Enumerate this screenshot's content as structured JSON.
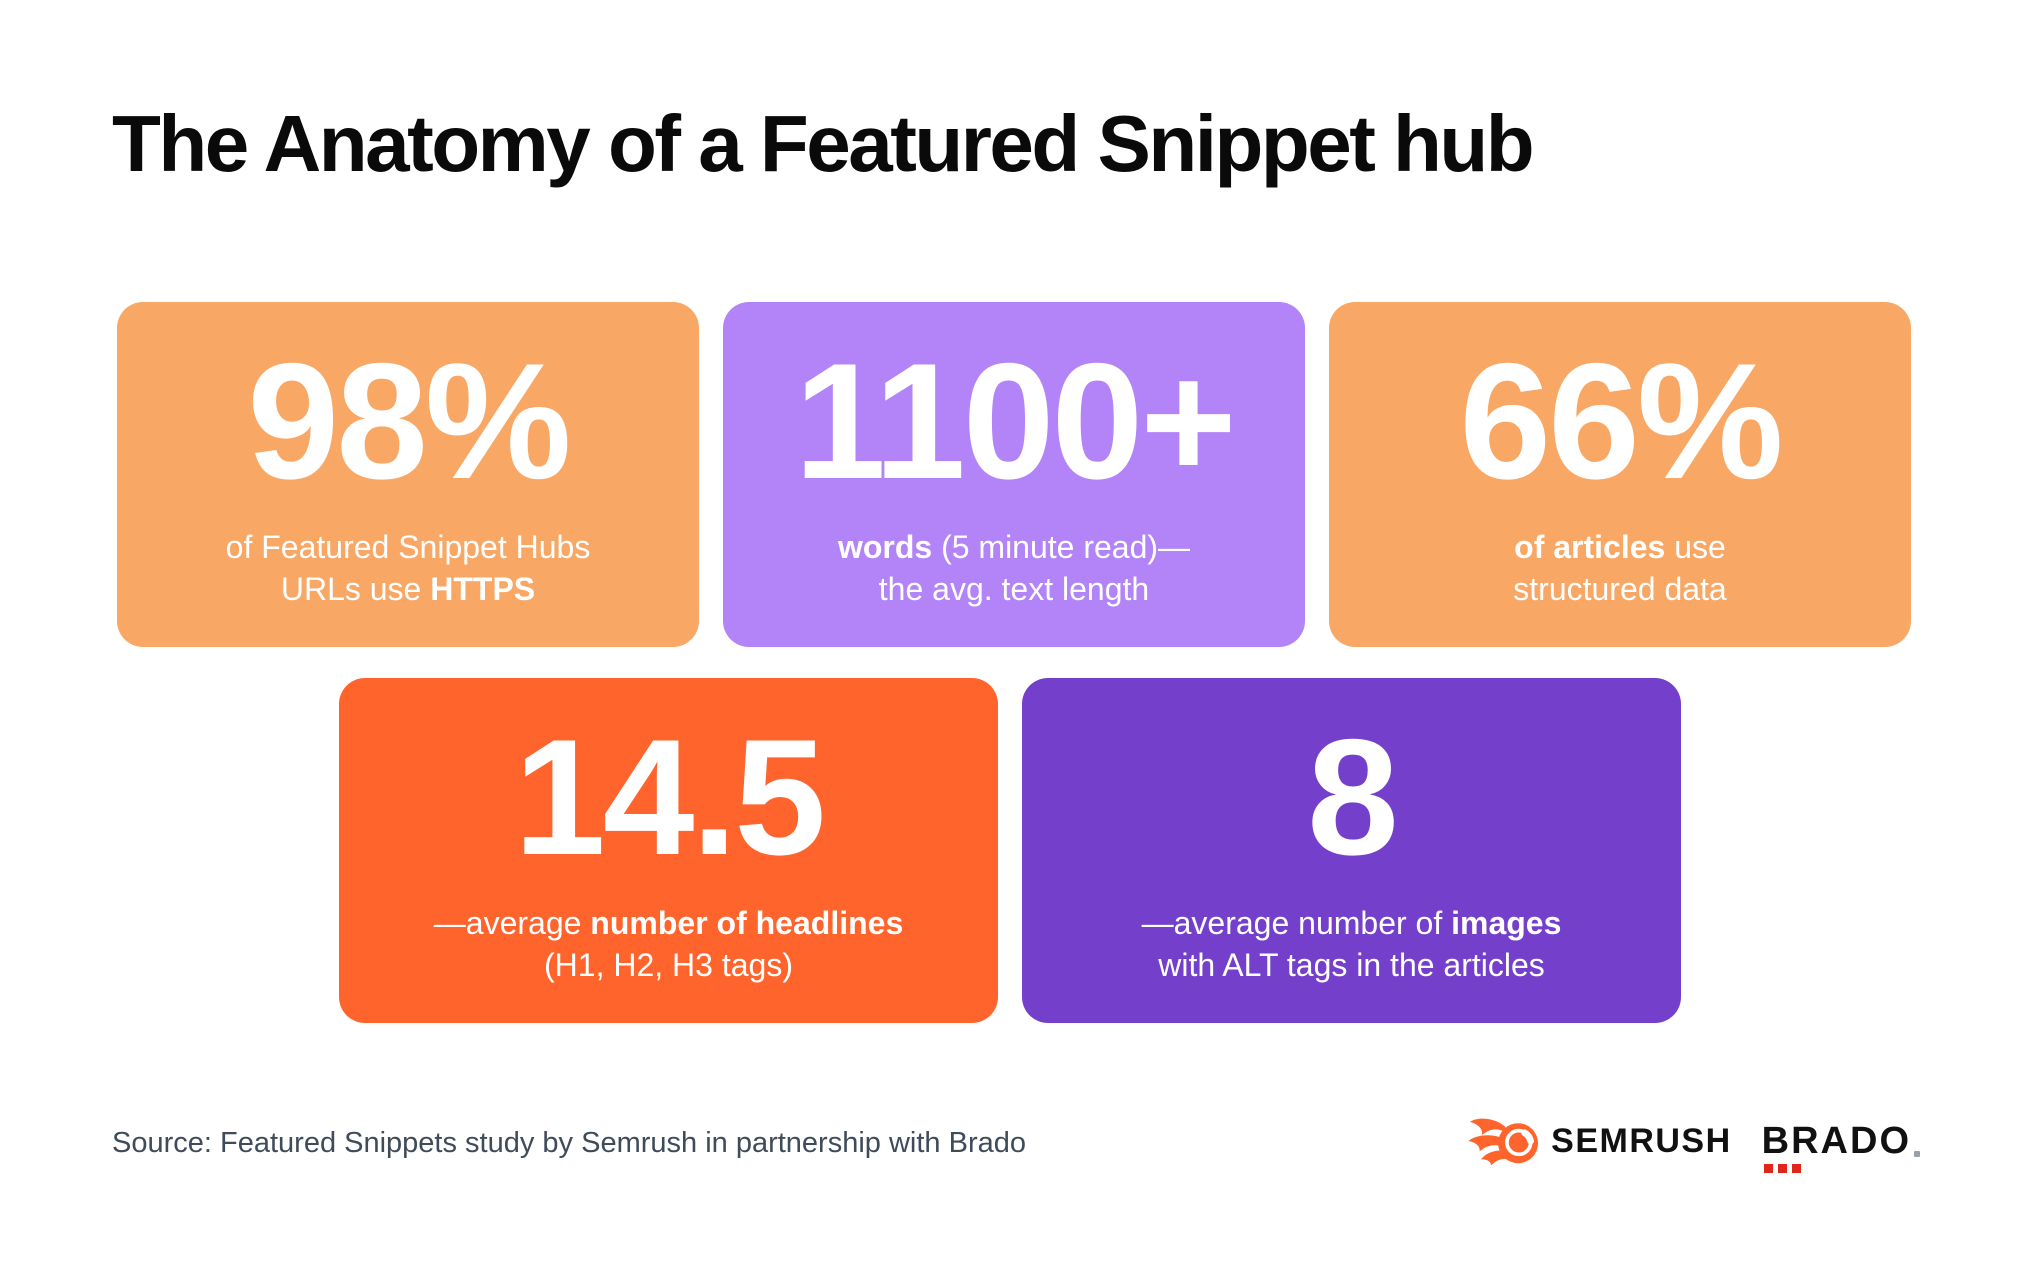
{
  "title": "The Anatomy of a Featured Snippet hub",
  "source_note": "Source: Featured Snippets study by Semrush in partnership with Brado",
  "logos": {
    "semrush_label": "SEMRUSH",
    "brado_label": "BRADO"
  },
  "colors": {
    "background": "#FFFFFF",
    "title_text": "#0A0A0A",
    "card_text": "#FFFFFF",
    "light_orange": "#F9A765",
    "light_purple": "#B384F7",
    "red_orange": "#FF642D",
    "dark_purple": "#7440CB",
    "source_text": "#404B5A",
    "semrush_orange": "#FF642D",
    "brado_red": "#E1251B",
    "logo_text": "#111111"
  },
  "rows": [
    {
      "cards": [
        {
          "name": "stat-card-https",
          "value": "98%",
          "color": "light_orange",
          "desc": [
            {
              "text": "of Featured Snippet Hubs\nURLs use ",
              "bold": false
            },
            {
              "text": "HTTPS",
              "bold": true
            }
          ]
        },
        {
          "name": "stat-card-words",
          "value": "1100+",
          "color": "light_purple",
          "desc": [
            {
              "text": "words",
              "bold": true
            },
            {
              "text": " (5 minute read)—\nthe avg. text length",
              "bold": false
            }
          ]
        },
        {
          "name": "stat-card-structured-data",
          "value": "66%",
          "color": "light_orange",
          "desc": [
            {
              "text": "of articles",
              "bold": true
            },
            {
              "text": " use\nstructured data",
              "bold": false
            }
          ]
        }
      ]
    },
    {
      "cards": [
        {
          "name": "stat-card-headlines",
          "value": "14.5",
          "color": "red_orange",
          "desc": [
            {
              "text": "—average ",
              "bold": false
            },
            {
              "text": "number of headlines",
              "bold": true
            },
            {
              "text": "\n(H1, H2, H3 tags)",
              "bold": false
            }
          ]
        },
        {
          "name": "stat-card-images",
          "value": "8",
          "color": "dark_purple",
          "desc": [
            {
              "text": "—average number of ",
              "bold": false
            },
            {
              "text": "images",
              "bold": true
            },
            {
              "text": "\nwith ALT tags in the articles",
              "bold": false
            }
          ]
        }
      ]
    }
  ],
  "chart_data": {
    "type": "table",
    "title": "The Anatomy of a Featured Snippet hub",
    "stats": [
      {
        "value": "98%",
        "label": "of Featured Snippet Hubs URLs use HTTPS"
      },
      {
        "value": "1100+",
        "label": "words (5 minute read)—the avg. text length"
      },
      {
        "value": "66%",
        "label": "of articles use structured data"
      },
      {
        "value": "14.5",
        "label": "average number of headlines (H1, H2, H3 tags)"
      },
      {
        "value": "8",
        "label": "average number of images with ALT tags in the articles"
      }
    ],
    "source": "Featured Snippets study by Semrush in partnership with Brado"
  }
}
